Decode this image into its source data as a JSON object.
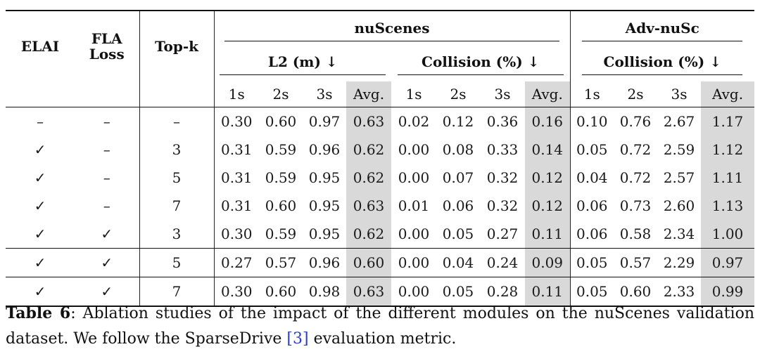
{
  "table": {
    "col_headers": {
      "elai": "ELAI",
      "fla_line1": "FLA",
      "fla_line2": "Loss",
      "topk": "Top-k"
    },
    "groups": {
      "nuscenes": "nuScenes",
      "advnusc": "Adv-nuSc"
    },
    "subgroups": {
      "l2": "L2 (m) ↓",
      "collision": "Collision (%) ↓",
      "adv_collision": "Collision (%) ↓"
    },
    "time_cols": [
      "1s",
      "2s",
      "3s",
      "Avg.",
      "1s",
      "2s",
      "3s",
      "Avg.",
      "1s",
      "2s",
      "3s",
      "Avg."
    ],
    "rows": [
      {
        "elai": "–",
        "fla": "–",
        "topk": "–",
        "vals": [
          "0.30",
          "0.60",
          "0.97",
          "0.63",
          "0.02",
          "0.12",
          "0.36",
          "0.16",
          "0.10",
          "0.76",
          "2.67",
          "1.17"
        ]
      },
      {
        "elai": "✓",
        "fla": "–",
        "topk": "3",
        "vals": [
          "0.31",
          "0.59",
          "0.96",
          "0.62",
          "0.00",
          "0.08",
          "0.33",
          "0.14",
          "0.05",
          "0.72",
          "2.59",
          "1.12"
        ]
      },
      {
        "elai": "✓",
        "fla": "–",
        "topk": "5",
        "vals": [
          "0.31",
          "0.59",
          "0.95",
          "0.62",
          "0.00",
          "0.07",
          "0.32",
          "0.12",
          "0.04",
          "0.72",
          "2.57",
          "1.11"
        ]
      },
      {
        "elai": "✓",
        "fla": "–",
        "topk": "7",
        "vals": [
          "0.31",
          "0.60",
          "0.95",
          "0.63",
          "0.01",
          "0.06",
          "0.32",
          "0.12",
          "0.06",
          "0.73",
          "2.60",
          "1.13"
        ]
      },
      {
        "elai": "✓",
        "fla": "✓",
        "topk": "3",
        "vals": [
          "0.30",
          "0.59",
          "0.95",
          "0.62",
          "0.00",
          "0.05",
          "0.27",
          "0.11",
          "0.06",
          "0.58",
          "2.34",
          "1.00"
        ]
      },
      {
        "elai": "✓",
        "fla": "✓",
        "topk": "5",
        "vals": [
          "0.27",
          "0.57",
          "0.96",
          "0.60",
          "0.00",
          "0.04",
          "0.24",
          "0.09",
          "0.05",
          "0.57",
          "2.29",
          "0.97"
        ]
      },
      {
        "elai": "✓",
        "fla": "✓",
        "topk": "7",
        "vals": [
          "0.30",
          "0.60",
          "0.98",
          "0.63",
          "0.00",
          "0.05",
          "0.28",
          "0.11",
          "0.05",
          "0.60",
          "2.33",
          "0.99"
        ]
      }
    ]
  },
  "caption": {
    "label": "Table 6",
    "text_before_cite": ": Ablation studies of the impact of the different modules on the nuScenes validation dataset. We follow the SparseDrive ",
    "cite": "[3]",
    "text_after_cite": " evaluation metric."
  }
}
